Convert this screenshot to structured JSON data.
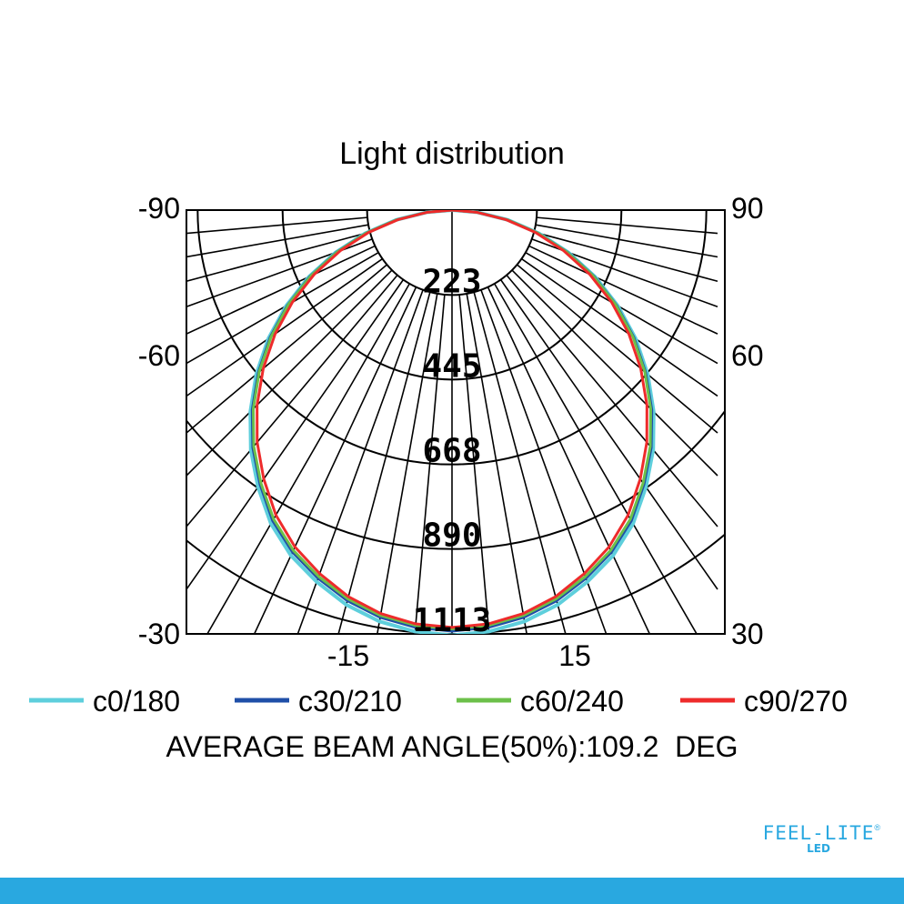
{
  "chart_data": {
    "type": "polar-line",
    "title": "Light distribution",
    "angles_deg": [
      0,
      5,
      10,
      15,
      20,
      25,
      30,
      35,
      40,
      45,
      50,
      55,
      60,
      65,
      70,
      75,
      80,
      85,
      90
    ],
    "radial_ticks": [
      "223",
      "445",
      "668",
      "890",
      "1113"
    ],
    "radial_max": 1113,
    "side_labels_left": [
      "-90",
      "-60",
      "-30"
    ],
    "side_labels_right": [
      "90",
      "60",
      "30"
    ],
    "bottom_labels": [
      "-15",
      "15"
    ],
    "series": [
      {
        "name": "c0/180",
        "color": "#5ecfdc",
        "values": [
          1117,
          1111,
          1097,
          1073,
          1039,
          1001,
          951,
          888,
          822,
          749,
          671,
          589,
          503,
          415,
          325,
          236,
          149,
          67,
          0
        ]
      },
      {
        "name": "c30/210",
        "color": "#1f4fa8",
        "values": [
          1106,
          1100,
          1086,
          1062,
          1029,
          991,
          942,
          879,
          814,
          742,
          664,
          583,
          498,
          411,
          322,
          234,
          148,
          66,
          0
        ]
      },
      {
        "name": "c60/240",
        "color": "#6cc04a",
        "values": [
          1100,
          1095,
          1081,
          1057,
          1024,
          986,
          937,
          875,
          810,
          738,
          661,
          580,
          496,
          409,
          320,
          233,
          147,
          66,
          0
        ]
      },
      {
        "name": "c90/270",
        "color": "#ee2b2b",
        "values": [
          1096,
          1091,
          1076,
          1051,
          1016,
          976,
          925,
          862,
          796,
          724,
          647,
          567,
          484,
          399,
          312,
          227,
          143,
          64,
          0
        ]
      }
    ],
    "footer": "AVERAGE BEAM ANGLE(50%):109.2  DEG"
  },
  "logo": {
    "main": "FEEL-LITE",
    "sub": "LED",
    "reg": "®"
  },
  "colors": {
    "bar": "#29a8e0"
  }
}
